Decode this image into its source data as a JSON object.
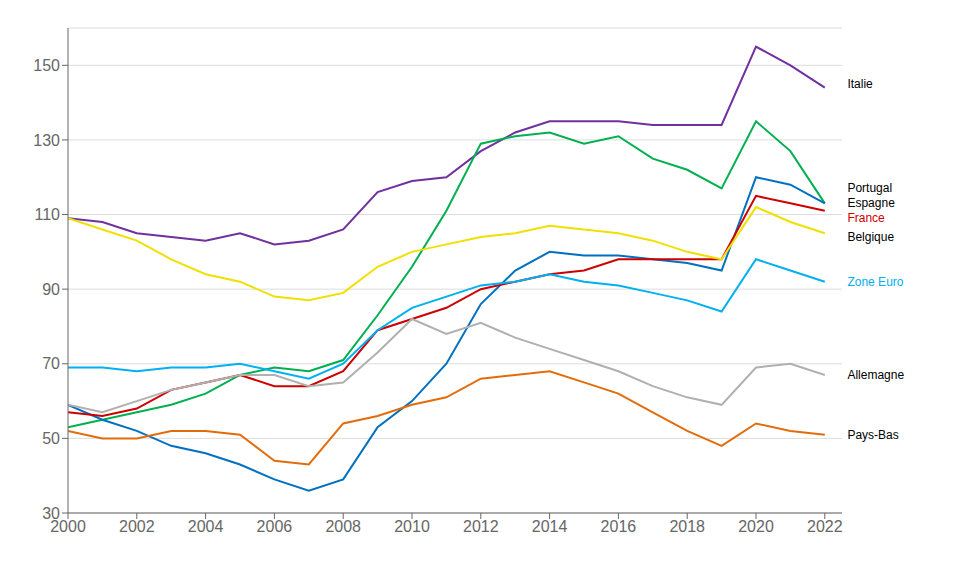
{
  "chart_data": {
    "type": "line",
    "x": [
      2000,
      2001,
      2002,
      2003,
      2004,
      2005,
      2006,
      2007,
      2008,
      2009,
      2010,
      2011,
      2012,
      2013,
      2014,
      2015,
      2016,
      2017,
      2018,
      2019,
      2020,
      2021,
      2022
    ],
    "series": [
      {
        "name": "Italie",
        "color": "#7030a0",
        "values": [
          109,
          108,
          105,
          104,
          103,
          105,
          102,
          103,
          106,
          116,
          119,
          120,
          127,
          132,
          135,
          135,
          135,
          134,
          134,
          134,
          155,
          150,
          144
        ]
      },
      {
        "name": "Portugal",
        "color": "#00b050",
        "values": [
          53,
          55,
          57,
          59,
          62,
          67,
          69,
          68,
          71,
          83,
          96,
          111,
          129,
          131,
          132,
          129,
          131,
          125,
          122,
          117,
          135,
          127,
          113
        ]
      },
      {
        "name": "Espagne",
        "color": "#0070c0",
        "values": [
          59,
          55,
          52,
          48,
          46,
          43,
          39,
          36,
          39,
          53,
          60,
          70,
          86,
          95,
          100,
          99,
          99,
          98,
          97,
          95,
          120,
          118,
          113
        ]
      },
      {
        "name": "France",
        "color": "#cc0000",
        "values": [
          57,
          56,
          58,
          63,
          65,
          67,
          64,
          64,
          68,
          79,
          82,
          85,
          90,
          92,
          94,
          95,
          98,
          98,
          98,
          98,
          115,
          113,
          111
        ]
      },
      {
        "name": "Belgique",
        "color": "#f0e000",
        "values": [
          109,
          106,
          103,
          98,
          94,
          92,
          88,
          87,
          89,
          96,
          100,
          102,
          104,
          105,
          107,
          106,
          105,
          103,
          100,
          98,
          112,
          108,
          105
        ]
      },
      {
        "name": "Zone Euro",
        "color": "#00b0f0",
        "values": [
          69,
          69,
          68,
          69,
          69,
          70,
          68,
          66,
          70,
          79,
          85,
          88,
          91,
          92,
          94,
          92,
          91,
          89,
          87,
          84,
          98,
          95,
          92
        ]
      },
      {
        "name": "Allemagne",
        "color": "#b0b0b0",
        "values": [
          59,
          57,
          60,
          63,
          65,
          67,
          67,
          64,
          65,
          73,
          82,
          78,
          81,
          77,
          74,
          71,
          68,
          64,
          61,
          59,
          69,
          70,
          67
        ]
      },
      {
        "name": "Pays-Bas",
        "color": "#e36c0a",
        "values": [
          52,
          50,
          50,
          52,
          52,
          51,
          44,
          43,
          54,
          56,
          59,
          61,
          66,
          67,
          68,
          65,
          62,
          57,
          52,
          48,
          54,
          52,
          51
        ]
      }
    ],
    "xlim": [
      2000,
      2022.5
    ],
    "xticks": [
      2000,
      2002,
      2004,
      2006,
      2008,
      2010,
      2012,
      2014,
      2016,
      2018,
      2020,
      2022
    ],
    "ylim": [
      30,
      160
    ],
    "yticks": [
      30,
      50,
      70,
      90,
      110,
      130,
      150
    ],
    "grid": true,
    "annotations": [
      {
        "text": "Italie",
        "x": 2022.6,
        "y": 145,
        "color": "#000000"
      },
      {
        "text": "Portugal",
        "x": 2022.6,
        "y": 117,
        "color": "#000000"
      },
      {
        "text": "Espagne",
        "x": 2022.6,
        "y": 113,
        "color": "#000000"
      },
      {
        "text": "France",
        "x": 2022.6,
        "y": 109,
        "color": "#cc0000"
      },
      {
        "text": "Belgique",
        "x": 2022.6,
        "y": 104,
        "color": "#000000"
      },
      {
        "text": "Zone Euro",
        "x": 2022.6,
        "y": 92,
        "color": "#00b0f0"
      },
      {
        "text": "Allemagne",
        "x": 2022.6,
        "y": 67,
        "color": "#000000"
      },
      {
        "text": "Pays-Bas",
        "x": 2022.6,
        "y": 51,
        "color": "#000000"
      }
    ]
  }
}
